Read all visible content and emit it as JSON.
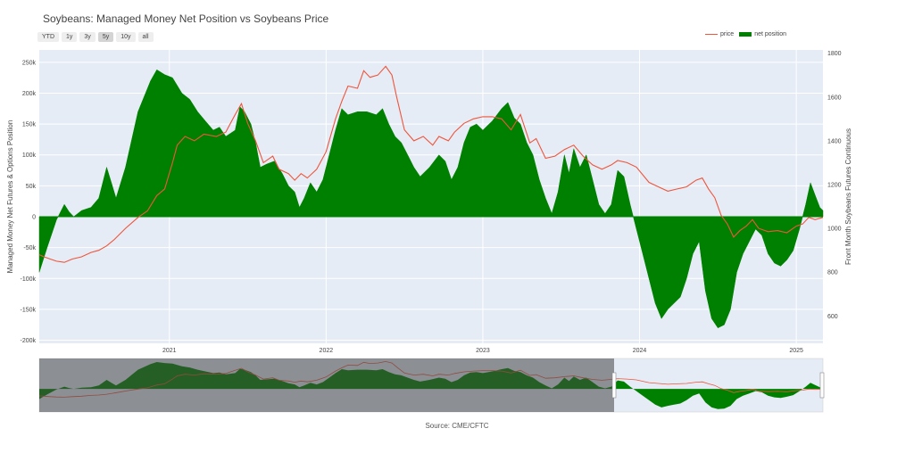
{
  "title": "Soybeans: Managed Money Net Position vs Soybeans Price",
  "range_buttons": [
    "YTD",
    "1y",
    "3y",
    "5y",
    "10y",
    "all"
  ],
  "active_range": "5y",
  "legend": {
    "price": "price",
    "position": "net position"
  },
  "colors": {
    "price": "#ef553b",
    "position": "#008000",
    "plot_bg": "#e5ecf6"
  },
  "source": "Source: CME/CFTC",
  "chart_data": {
    "type": "area",
    "x_unit": "year",
    "x_range": [
      2020.17,
      2025.17
    ],
    "x_ticks": [
      {
        "value": 2021,
        "label": "2021"
      },
      {
        "value": 2022,
        "label": "2022"
      },
      {
        "value": 2023,
        "label": "2023"
      },
      {
        "value": 2024,
        "label": "2024"
      },
      {
        "value": 2025,
        "label": "2025"
      }
    ],
    "ylabel_left": "Managed Money Net Futures & Options Position",
    "ylabel_right": "Front Month Soybeans Futures Continuous",
    "y_left_range": [
      -205000,
      270000
    ],
    "y_left_ticks": [
      {
        "value": -200000,
        "label": "-200k"
      },
      {
        "value": -150000,
        "label": "-150k"
      },
      {
        "value": -100000,
        "label": "-100k"
      },
      {
        "value": -50000,
        "label": "-50k"
      },
      {
        "value": 0,
        "label": "0"
      },
      {
        "value": 50000,
        "label": "50k"
      },
      {
        "value": 100000,
        "label": "100k"
      },
      {
        "value": 150000,
        "label": "150k"
      },
      {
        "value": 200000,
        "label": "200k"
      },
      {
        "value": 250000,
        "label": "250k"
      }
    ],
    "y_right_range": [
      475,
      1815
    ],
    "y_right_ticks": [
      {
        "value": 600,
        "label": "600"
      },
      {
        "value": 800,
        "label": "800"
      },
      {
        "value": 1000,
        "label": "1000"
      },
      {
        "value": 1200,
        "label": "1200"
      },
      {
        "value": 1400,
        "label": "1400"
      },
      {
        "value": 1600,
        "label": "1600"
      },
      {
        "value": 1800,
        "label": "1800"
      }
    ],
    "grid": true,
    "series": [
      {
        "name": "net position",
        "axis": "left",
        "style": "fill",
        "points": [
          [
            2020.17,
            -90000
          ],
          [
            2020.22,
            -50000
          ],
          [
            2020.26,
            -20000
          ],
          [
            2020.28,
            -5000
          ],
          [
            2020.33,
            20000
          ],
          [
            2020.36,
            8000
          ],
          [
            2020.39,
            0
          ],
          [
            2020.44,
            10000
          ],
          [
            2020.5,
            15000
          ],
          [
            2020.55,
            30000
          ],
          [
            2020.6,
            80000
          ],
          [
            2020.63,
            55000
          ],
          [
            2020.66,
            30000
          ],
          [
            2020.72,
            80000
          ],
          [
            2020.8,
            170000
          ],
          [
            2020.88,
            220000
          ],
          [
            2020.92,
            238000
          ],
          [
            2020.97,
            230000
          ],
          [
            2021.02,
            225000
          ],
          [
            2021.08,
            200000
          ],
          [
            2021.13,
            190000
          ],
          [
            2021.18,
            170000
          ],
          [
            2021.23,
            155000
          ],
          [
            2021.28,
            140000
          ],
          [
            2021.32,
            145000
          ],
          [
            2021.36,
            130000
          ],
          [
            2021.42,
            140000
          ],
          [
            2021.45,
            178000
          ],
          [
            2021.48,
            170000
          ],
          [
            2021.52,
            150000
          ],
          [
            2021.55,
            120000
          ],
          [
            2021.58,
            80000
          ],
          [
            2021.62,
            85000
          ],
          [
            2021.67,
            90000
          ],
          [
            2021.72,
            70000
          ],
          [
            2021.76,
            50000
          ],
          [
            2021.8,
            40000
          ],
          [
            2021.83,
            15000
          ],
          [
            2021.86,
            30000
          ],
          [
            2021.9,
            55000
          ],
          [
            2021.94,
            40000
          ],
          [
            2021.98,
            60000
          ],
          [
            2022.02,
            100000
          ],
          [
            2022.06,
            140000
          ],
          [
            2022.1,
            175000
          ],
          [
            2022.14,
            165000
          ],
          [
            2022.2,
            170000
          ],
          [
            2022.26,
            170000
          ],
          [
            2022.32,
            165000
          ],
          [
            2022.36,
            175000
          ],
          [
            2022.4,
            150000
          ],
          [
            2022.44,
            130000
          ],
          [
            2022.48,
            120000
          ],
          [
            2022.52,
            100000
          ],
          [
            2022.56,
            80000
          ],
          [
            2022.6,
            65000
          ],
          [
            2022.66,
            80000
          ],
          [
            2022.72,
            100000
          ],
          [
            2022.76,
            90000
          ],
          [
            2022.8,
            60000
          ],
          [
            2022.84,
            80000
          ],
          [
            2022.88,
            120000
          ],
          [
            2022.92,
            145000
          ],
          [
            2022.96,
            150000
          ],
          [
            2023.0,
            140000
          ],
          [
            2023.06,
            155000
          ],
          [
            2023.12,
            175000
          ],
          [
            2023.16,
            185000
          ],
          [
            2023.2,
            160000
          ],
          [
            2023.24,
            150000
          ],
          [
            2023.28,
            120000
          ],
          [
            2023.32,
            100000
          ],
          [
            2023.36,
            60000
          ],
          [
            2023.4,
            30000
          ],
          [
            2023.44,
            5000
          ],
          [
            2023.48,
            40000
          ],
          [
            2023.52,
            100000
          ],
          [
            2023.55,
            70000
          ],
          [
            2023.58,
            110000
          ],
          [
            2023.62,
            80000
          ],
          [
            2023.66,
            100000
          ],
          [
            2023.7,
            60000
          ],
          [
            2023.74,
            20000
          ],
          [
            2023.78,
            5000
          ],
          [
            2023.82,
            20000
          ],
          [
            2023.86,
            75000
          ],
          [
            2023.9,
            65000
          ],
          [
            2023.94,
            20000
          ],
          [
            2023.98,
            -20000
          ],
          [
            2024.02,
            -60000
          ],
          [
            2024.06,
            -100000
          ],
          [
            2024.1,
            -140000
          ],
          [
            2024.14,
            -165000
          ],
          [
            2024.18,
            -150000
          ],
          [
            2024.22,
            -140000
          ],
          [
            2024.26,
            -130000
          ],
          [
            2024.3,
            -100000
          ],
          [
            2024.34,
            -60000
          ],
          [
            2024.38,
            -40000
          ],
          [
            2024.42,
            -120000
          ],
          [
            2024.46,
            -165000
          ],
          [
            2024.5,
            -180000
          ],
          [
            2024.54,
            -175000
          ],
          [
            2024.58,
            -150000
          ],
          [
            2024.62,
            -90000
          ],
          [
            2024.66,
            -60000
          ],
          [
            2024.7,
            -40000
          ],
          [
            2024.74,
            -20000
          ],
          [
            2024.78,
            -30000
          ],
          [
            2024.82,
            -60000
          ],
          [
            2024.86,
            -75000
          ],
          [
            2024.9,
            -80000
          ],
          [
            2024.94,
            -70000
          ],
          [
            2024.98,
            -55000
          ],
          [
            2025.02,
            -20000
          ],
          [
            2025.06,
            20000
          ],
          [
            2025.09,
            55000
          ],
          [
            2025.12,
            35000
          ],
          [
            2025.15,
            15000
          ],
          [
            2025.17,
            10000
          ]
        ]
      },
      {
        "name": "price",
        "axis": "right",
        "style": "line",
        "points": [
          [
            2020.17,
            880
          ],
          [
            2020.2,
            870
          ],
          [
            2020.24,
            860
          ],
          [
            2020.28,
            850
          ],
          [
            2020.33,
            845
          ],
          [
            2020.38,
            860
          ],
          [
            2020.44,
            870
          ],
          [
            2020.5,
            890
          ],
          [
            2020.55,
            900
          ],
          [
            2020.6,
            920
          ],
          [
            2020.65,
            950
          ],
          [
            2020.72,
            1000
          ],
          [
            2020.8,
            1050
          ],
          [
            2020.86,
            1080
          ],
          [
            2020.92,
            1150
          ],
          [
            2020.97,
            1180
          ],
          [
            2021.02,
            1300
          ],
          [
            2021.05,
            1380
          ],
          [
            2021.1,
            1420
          ],
          [
            2021.16,
            1400
          ],
          [
            2021.22,
            1430
          ],
          [
            2021.3,
            1420
          ],
          [
            2021.36,
            1440
          ],
          [
            2021.42,
            1520
          ],
          [
            2021.46,
            1570
          ],
          [
            2021.5,
            1480
          ],
          [
            2021.55,
            1400
          ],
          [
            2021.6,
            1300
          ],
          [
            2021.66,
            1330
          ],
          [
            2021.7,
            1270
          ],
          [
            2021.76,
            1250
          ],
          [
            2021.8,
            1220
          ],
          [
            2021.84,
            1250
          ],
          [
            2021.88,
            1230
          ],
          [
            2021.94,
            1270
          ],
          [
            2022.0,
            1350
          ],
          [
            2022.06,
            1500
          ],
          [
            2022.1,
            1580
          ],
          [
            2022.14,
            1650
          ],
          [
            2022.2,
            1640
          ],
          [
            2022.24,
            1720
          ],
          [
            2022.28,
            1690
          ],
          [
            2022.33,
            1700
          ],
          [
            2022.38,
            1740
          ],
          [
            2022.42,
            1700
          ],
          [
            2022.45,
            1600
          ],
          [
            2022.5,
            1450
          ],
          [
            2022.56,
            1400
          ],
          [
            2022.62,
            1420
          ],
          [
            2022.68,
            1380
          ],
          [
            2022.72,
            1420
          ],
          [
            2022.78,
            1400
          ],
          [
            2022.82,
            1440
          ],
          [
            2022.88,
            1480
          ],
          [
            2022.94,
            1500
          ],
          [
            2023.0,
            1510
          ],
          [
            2023.06,
            1510
          ],
          [
            2023.12,
            1500
          ],
          [
            2023.18,
            1450
          ],
          [
            2023.24,
            1520
          ],
          [
            2023.3,
            1390
          ],
          [
            2023.34,
            1410
          ],
          [
            2023.4,
            1320
          ],
          [
            2023.46,
            1330
          ],
          [
            2023.52,
            1360
          ],
          [
            2023.58,
            1380
          ],
          [
            2023.64,
            1330
          ],
          [
            2023.7,
            1290
          ],
          [
            2023.76,
            1270
          ],
          [
            2023.82,
            1290
          ],
          [
            2023.86,
            1310
          ],
          [
            2023.92,
            1300
          ],
          [
            2023.98,
            1280
          ],
          [
            2024.06,
            1210
          ],
          [
            2024.12,
            1190
          ],
          [
            2024.18,
            1170
          ],
          [
            2024.24,
            1180
          ],
          [
            2024.3,
            1190
          ],
          [
            2024.36,
            1220
          ],
          [
            2024.4,
            1230
          ],
          [
            2024.44,
            1180
          ],
          [
            2024.48,
            1140
          ],
          [
            2024.52,
            1060
          ],
          [
            2024.56,
            1020
          ],
          [
            2024.6,
            960
          ],
          [
            2024.64,
            990
          ],
          [
            2024.68,
            1010
          ],
          [
            2024.72,
            1040
          ],
          [
            2024.76,
            1000
          ],
          [
            2024.82,
            985
          ],
          [
            2024.88,
            990
          ],
          [
            2024.94,
            980
          ],
          [
            2025.0,
            1010
          ],
          [
            2025.04,
            1020
          ],
          [
            2025.08,
            1050
          ],
          [
            2025.12,
            1040
          ],
          [
            2025.17,
            1050
          ]
        ]
      }
    ]
  }
}
